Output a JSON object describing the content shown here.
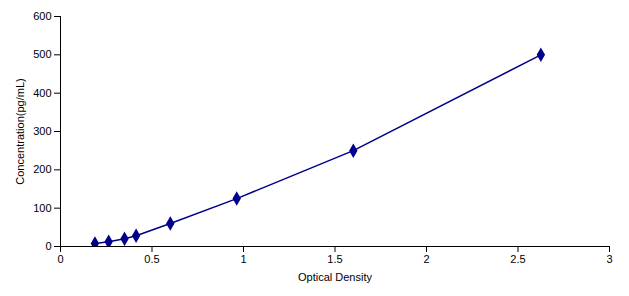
{
  "chart_data": {
    "type": "line",
    "x": [
      0.188,
      0.263,
      0.35,
      0.413,
      0.6,
      0.963,
      1.6,
      2.625
    ],
    "values": [
      7.8,
      12.5,
      20.0,
      28.0,
      60.0,
      125.0,
      250.0,
      500.0
    ],
    "color": "#00008B",
    "marker": "diamond",
    "line_style": "solid",
    "xlabel": "Optical Density",
    "ylabel": "Concentration(pg/mL)",
    "xlim": [
      0.0,
      3.0
    ],
    "ylim": [
      0,
      600
    ],
    "xticks": [
      0,
      0.5,
      1,
      1.5,
      2,
      2.5,
      3
    ],
    "yticks": [
      0,
      100,
      200,
      300,
      400,
      500,
      600
    ]
  }
}
